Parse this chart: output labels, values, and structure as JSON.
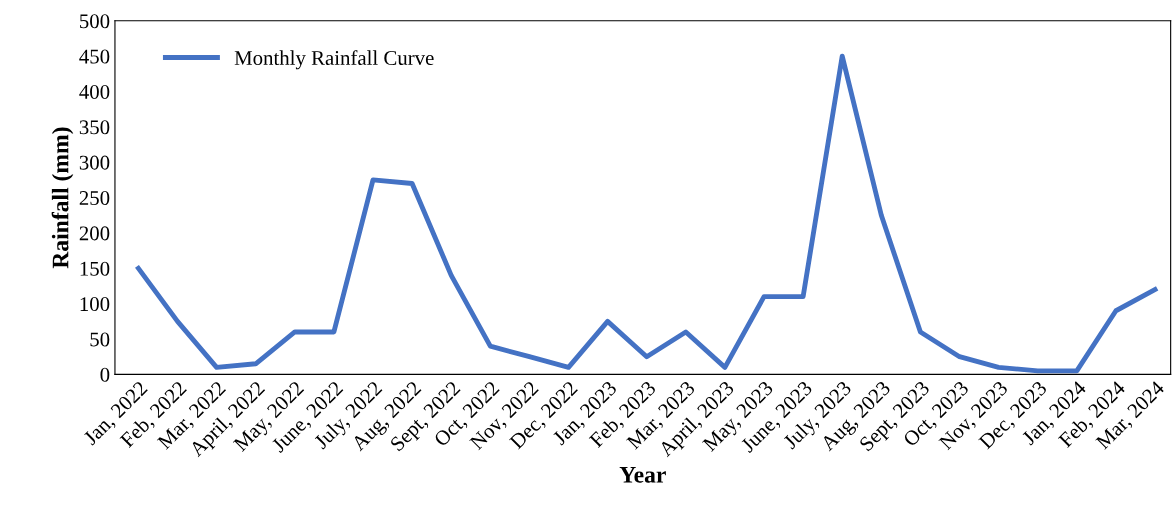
{
  "chart_data": {
    "type": "line",
    "xlabel": "Year",
    "ylabel": "Rainfall (mm)",
    "categories": [
      "Jan, 2022",
      "Feb, 2022",
      "Mar, 2022",
      "April, 2022",
      "May, 2022",
      "June, 2022",
      "July, 2022",
      "Aug, 2022",
      "Sept, 2022",
      "Oct, 2022",
      "Nov, 2022",
      "Dec, 2022",
      "Jan, 2023",
      "Feb, 2023",
      "Mar, 2023",
      "April, 2023",
      "May, 2023",
      "June, 2023",
      "July, 2023",
      "Aug, 2023",
      "Sept, 2023",
      "Oct, 2023",
      "Nov, 2023",
      "Dec, 2023",
      "Jan, 2024",
      "Feb, 2024",
      "Mar, 2024"
    ],
    "series": [
      {
        "name": "Monthly Rainfall Curve",
        "color": "#4472c4",
        "values": [
          150,
          75,
          10,
          15,
          60,
          60,
          275,
          270,
          140,
          40,
          25,
          10,
          75,
          25,
          60,
          10,
          110,
          110,
          450,
          225,
          60,
          25,
          10,
          5,
          5,
          90,
          120
        ]
      }
    ],
    "ylim": [
      0,
      500
    ],
    "yticks": [
      0,
      50,
      100,
      150,
      200,
      250,
      300,
      350,
      400,
      450,
      500
    ],
    "grid": false,
    "legend": "top left",
    "marker": "none",
    "line_style": "solid"
  }
}
